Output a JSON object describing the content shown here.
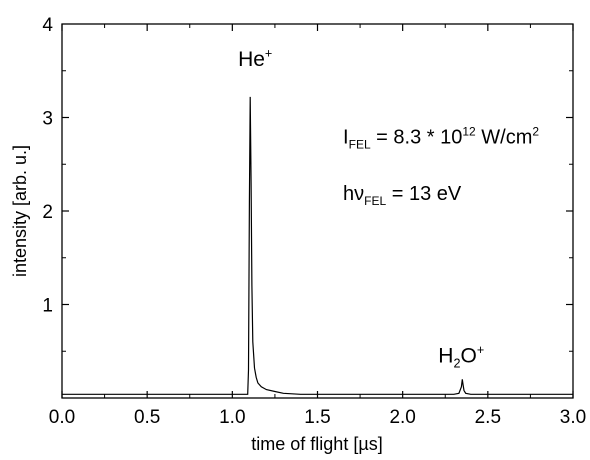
{
  "chart_data": {
    "type": "line",
    "title": "",
    "xlabel": "time of flight [µs]",
    "ylabel": "intensity [arb. u.]",
    "xlim": [
      0.0,
      3.0
    ],
    "ylim": [
      0,
      4
    ],
    "x_ticks": [
      "0.0",
      "0.5",
      "1.0",
      "1.5",
      "2.0",
      "2.5",
      "3.0"
    ],
    "y_ticks": [
      "1",
      "2",
      "3",
      "4"
    ],
    "grid": false,
    "legend": "none",
    "series": [
      {
        "color": "#000000",
        "x": [
          0.0,
          0.2,
          0.4,
          0.6,
          0.8,
          1.0,
          1.09,
          1.095,
          1.1,
          1.105,
          1.11,
          1.115,
          1.12,
          1.13,
          1.14,
          1.15,
          1.17,
          1.2,
          1.25,
          1.3,
          1.4,
          1.6,
          1.8,
          2.0,
          2.2,
          2.3,
          2.33,
          2.345,
          2.35,
          2.355,
          2.36,
          2.37,
          2.4,
          2.6,
          2.8,
          3.0
        ],
        "y": [
          0.04,
          0.04,
          0.04,
          0.04,
          0.04,
          0.04,
          0.04,
          0.3,
          2.1,
          3.22,
          2.3,
          1.2,
          0.6,
          0.32,
          0.22,
          0.16,
          0.12,
          0.09,
          0.07,
          0.05,
          0.04,
          0.04,
          0.04,
          0.04,
          0.04,
          0.04,
          0.05,
          0.12,
          0.2,
          0.14,
          0.08,
          0.05,
          0.04,
          0.04,
          0.04,
          0.04
        ]
      }
    ],
    "annotations": {
      "he_peak": {
        "base": "He",
        "sup": "+",
        "x": 1.11,
        "y": 3.55
      },
      "h2o_peak": {
        "part1": "H",
        "sub": "2",
        "part2": "O",
        "sup": "+",
        "x": 2.35,
        "y": 0.38
      },
      "intensity": {
        "base": "I",
        "sub": "FEL",
        "text": " = 8.3 * 10",
        "exp": "12",
        "unit": " W/cm",
        "unit_exp": "2",
        "x": 1.65,
        "y": 2.72
      },
      "photon": {
        "base": "hν",
        "sub": "FEL",
        "text": " = 13 eV",
        "x": 1.65,
        "y": 2.12
      }
    }
  }
}
